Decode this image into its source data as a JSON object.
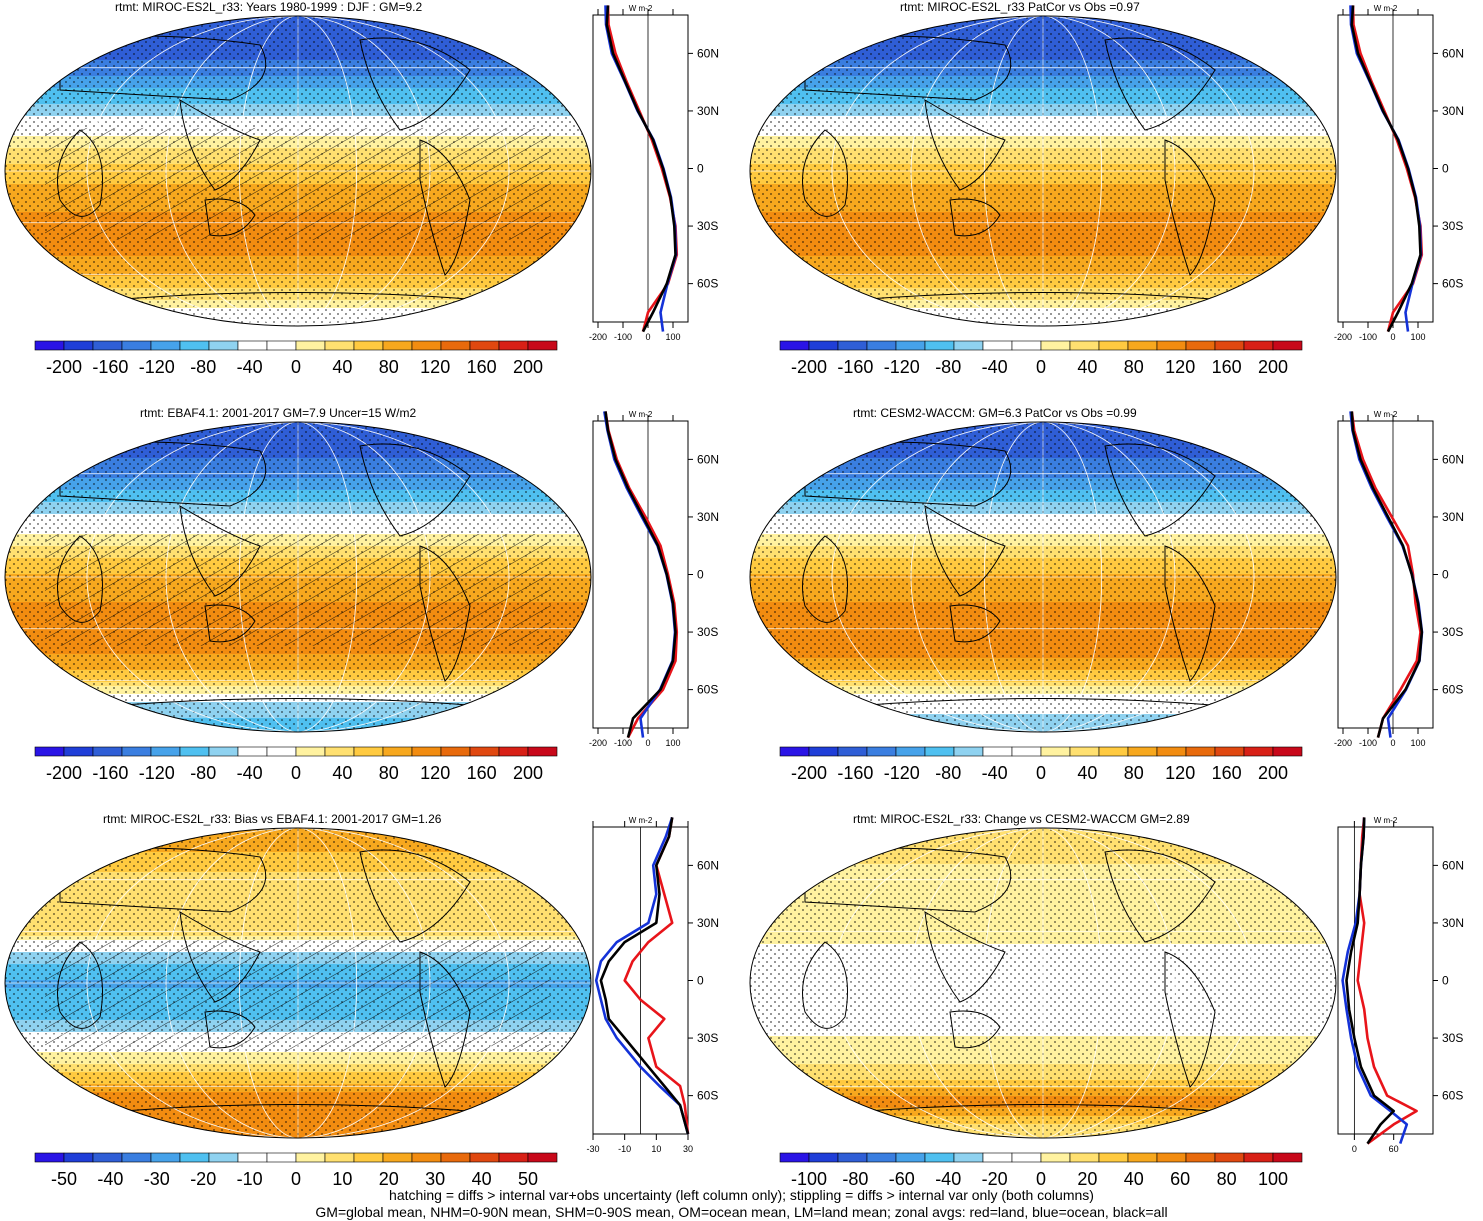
{
  "figure": {
    "footnote": [
      "hatching = diffs > internal var+obs uncertainty (left column only); stippling = diffs > internal var only (both columns)",
      "GM=global mean, NHM=0-90N mean, SHM=0-90S mean, OM=ocean mean, LM=land mean; zonal avgs: red=land, blue=ocean, black=all"
    ],
    "colors": {
      "land_line": "#e8141a",
      "ocean_line": "#1432d8",
      "all_line": "#000000"
    }
  },
  "chart_data": [
    {
      "type": "heatmap",
      "panel_id": "p1",
      "title": "rtmt: MIROC-ES2L_r33: Years 1980-1999 : DJF : GM=9.2",
      "colorbar": {
        "ticks": [
          "-200",
          "-160",
          "-120",
          "-80",
          "-40",
          "0",
          "40",
          "80",
          "120",
          "160",
          "200"
        ],
        "range": [
          -220,
          220
        ]
      },
      "zonal_profile": {
        "unit": "W m-2",
        "lat_ticks": [
          "60N",
          "30N",
          "0",
          "30S",
          "60S"
        ],
        "x_ticks": [
          "-200",
          "-100",
          "0",
          "100"
        ],
        "xlim": [
          -220,
          160
        ],
        "lat": [
          85,
          75,
          60,
          45,
          30,
          15,
          0,
          -15,
          -30,
          -45,
          -60,
          -75,
          -85
        ],
        "all": [
          -160,
          -165,
          -140,
          -90,
          -40,
          20,
          60,
          90,
          105,
          110,
          75,
          20,
          -20
        ],
        "land": [
          -160,
          -158,
          -130,
          -85,
          -35,
          15,
          55,
          88,
          110,
          115,
          80,
          0,
          -20
        ],
        "ocean": [
          -170,
          -168,
          -145,
          -92,
          -42,
          22,
          62,
          92,
          108,
          112,
          78,
          50,
          60
        ]
      },
      "hatched": true
    },
    {
      "type": "heatmap",
      "panel_id": "p2",
      "title": "rtmt: MIROC-ES2L_r33 PatCor vs Obs =0.97",
      "colorbar": {
        "ticks": [
          "-200",
          "-160",
          "-120",
          "-80",
          "-40",
          "0",
          "40",
          "80",
          "120",
          "160",
          "200"
        ],
        "range": [
          -220,
          220
        ]
      },
      "zonal_profile": {
        "unit": "W m-2",
        "lat_ticks": [
          "60N",
          "30N",
          "0",
          "30S",
          "60S"
        ],
        "x_ticks": [
          "-200",
          "-100",
          "0",
          "100"
        ],
        "xlim": [
          -220,
          160
        ],
        "lat": [
          85,
          75,
          60,
          45,
          30,
          15,
          0,
          -15,
          -30,
          -45,
          -60,
          -75,
          -85
        ],
        "all": [
          -160,
          -165,
          -140,
          -90,
          -40,
          20,
          60,
          90,
          105,
          110,
          75,
          20,
          -20
        ],
        "land": [
          -160,
          -158,
          -130,
          -85,
          -35,
          15,
          55,
          88,
          110,
          115,
          80,
          0,
          -20
        ],
        "ocean": [
          -170,
          -168,
          -145,
          -92,
          -42,
          22,
          62,
          92,
          108,
          112,
          78,
          50,
          60
        ]
      },
      "hatched": false
    },
    {
      "type": "heatmap",
      "panel_id": "p3",
      "title": "rtmt: EBAF4.1: 2001-2017 GM=7.9 Uncer=15 W/m2",
      "colorbar": {
        "ticks": [
          "-200",
          "-160",
          "-120",
          "-80",
          "-40",
          "0",
          "40",
          "80",
          "120",
          "160",
          "200"
        ],
        "range": [
          -220,
          220
        ]
      },
      "zonal_profile": {
        "unit": "W m-2",
        "lat_ticks": [
          "60N",
          "30N",
          "0",
          "30S",
          "60S"
        ],
        "x_ticks": [
          "-200",
          "-100",
          "0",
          "100"
        ],
        "xlim": [
          -220,
          160
        ],
        "lat": [
          85,
          75,
          60,
          45,
          30,
          15,
          0,
          -15,
          -30,
          -45,
          -60,
          -75,
          -85
        ],
        "all": [
          -170,
          -160,
          -130,
          -80,
          -20,
          40,
          75,
          100,
          110,
          100,
          50,
          -60,
          -80
        ],
        "land": [
          -170,
          -158,
          -125,
          -75,
          -10,
          50,
          80,
          105,
          115,
          110,
          60,
          -40,
          -80
        ],
        "ocean": [
          -175,
          -162,
          -135,
          -85,
          -25,
          38,
          74,
          98,
          108,
          98,
          48,
          -30,
          -20
        ]
      },
      "hatched": true
    },
    {
      "type": "heatmap",
      "panel_id": "p4",
      "title": "rtmt: CESM2-WACCM: GM=6.3 PatCor vs Obs =0.99",
      "colorbar": {
        "ticks": [
          "-200",
          "-160",
          "-120",
          "-80",
          "-40",
          "0",
          "40",
          "80",
          "120",
          "160",
          "200"
        ],
        "range": [
          -220,
          220
        ]
      },
      "zonal_profile": {
        "unit": "W m-2",
        "lat_ticks": [
          "60N",
          "30N",
          "0",
          "30S",
          "60S"
        ],
        "x_ticks": [
          "-200",
          "-100",
          "0",
          "100"
        ],
        "xlim": [
          -220,
          160
        ],
        "lat": [
          85,
          75,
          60,
          45,
          30,
          15,
          0,
          -15,
          -30,
          -45,
          -60,
          -75,
          -85
        ],
        "all": [
          -165,
          -160,
          -130,
          -80,
          -20,
          40,
          75,
          100,
          115,
          105,
          50,
          -40,
          -60
        ],
        "land": [
          -165,
          -155,
          -120,
          -70,
          -5,
          60,
          80,
          90,
          110,
          95,
          30,
          -40,
          -60
        ],
        "ocean": [
          -170,
          -162,
          -135,
          -85,
          -25,
          38,
          76,
          102,
          116,
          106,
          52,
          -20,
          -10
        ]
      },
      "hatched": false
    },
    {
      "type": "heatmap",
      "panel_id": "p5",
      "title": "rtmt: MIROC-ES2L_r33: Bias vs EBAF4.1: 2001-2017 GM=1.26",
      "colorbar": {
        "ticks": [
          "-50",
          "-40",
          "-30",
          "-20",
          "-10",
          "0",
          "10",
          "20",
          "30",
          "40",
          "50"
        ],
        "range": [
          -55,
          55
        ]
      },
      "zonal_profile": {
        "unit": "W m-2",
        "lat_ticks": [
          "60N",
          "30N",
          "0",
          "30S",
          "60S"
        ],
        "x_ticks": [
          "-30",
          "-10",
          "10",
          "30"
        ],
        "xlim": [
          -30,
          30
        ],
        "lat": [
          85,
          75,
          60,
          45,
          30,
          20,
          10,
          0,
          -10,
          -20,
          -30,
          -45,
          -55,
          -65,
          -80
        ],
        "all": [
          20,
          18,
          10,
          12,
          10,
          -10,
          -20,
          -25,
          -22,
          -20,
          -10,
          5,
          15,
          25,
          30
        ],
        "land": [
          20,
          18,
          10,
          15,
          20,
          5,
          -5,
          -10,
          0,
          15,
          5,
          10,
          25,
          28,
          30
        ],
        "ocean": [
          20,
          16,
          8,
          10,
          5,
          -15,
          -25,
          -28,
          -25,
          -22,
          -15,
          0,
          12,
          25,
          30
        ]
      },
      "hatched": true
    },
    {
      "type": "heatmap",
      "panel_id": "p6",
      "title": "rtmt: MIROC-ES2L_r33: Change vs CESM2-WACCM GM=2.89",
      "colorbar": {
        "ticks": [
          "-100",
          "-80",
          "-60",
          "-40",
          "-20",
          "0",
          "20",
          "40",
          "60",
          "80",
          "100"
        ],
        "range": [
          -110,
          110
        ]
      },
      "zonal_profile": {
        "unit": "W m-2",
        "lat_ticks": [
          "60N",
          "30N",
          "0",
          "30S",
          "60S"
        ],
        "x_ticks": [
          "0",
          "60"
        ],
        "xlim": [
          -25,
          120
        ],
        "lat": [
          85,
          75,
          60,
          45,
          30,
          15,
          0,
          -15,
          -30,
          -45,
          -60,
          -68,
          -75,
          -85
        ],
        "all": [
          15,
          14,
          10,
          8,
          5,
          -5,
          -12,
          -8,
          0,
          10,
          30,
          60,
          40,
          20
        ],
        "land": [
          15,
          12,
          10,
          8,
          15,
          10,
          5,
          15,
          20,
          30,
          50,
          95,
          60,
          20
        ],
        "ocean": [
          15,
          14,
          10,
          8,
          2,
          -10,
          -18,
          -12,
          -5,
          5,
          25,
          55,
          80,
          70
        ]
      },
      "hatched": false
    }
  ]
}
